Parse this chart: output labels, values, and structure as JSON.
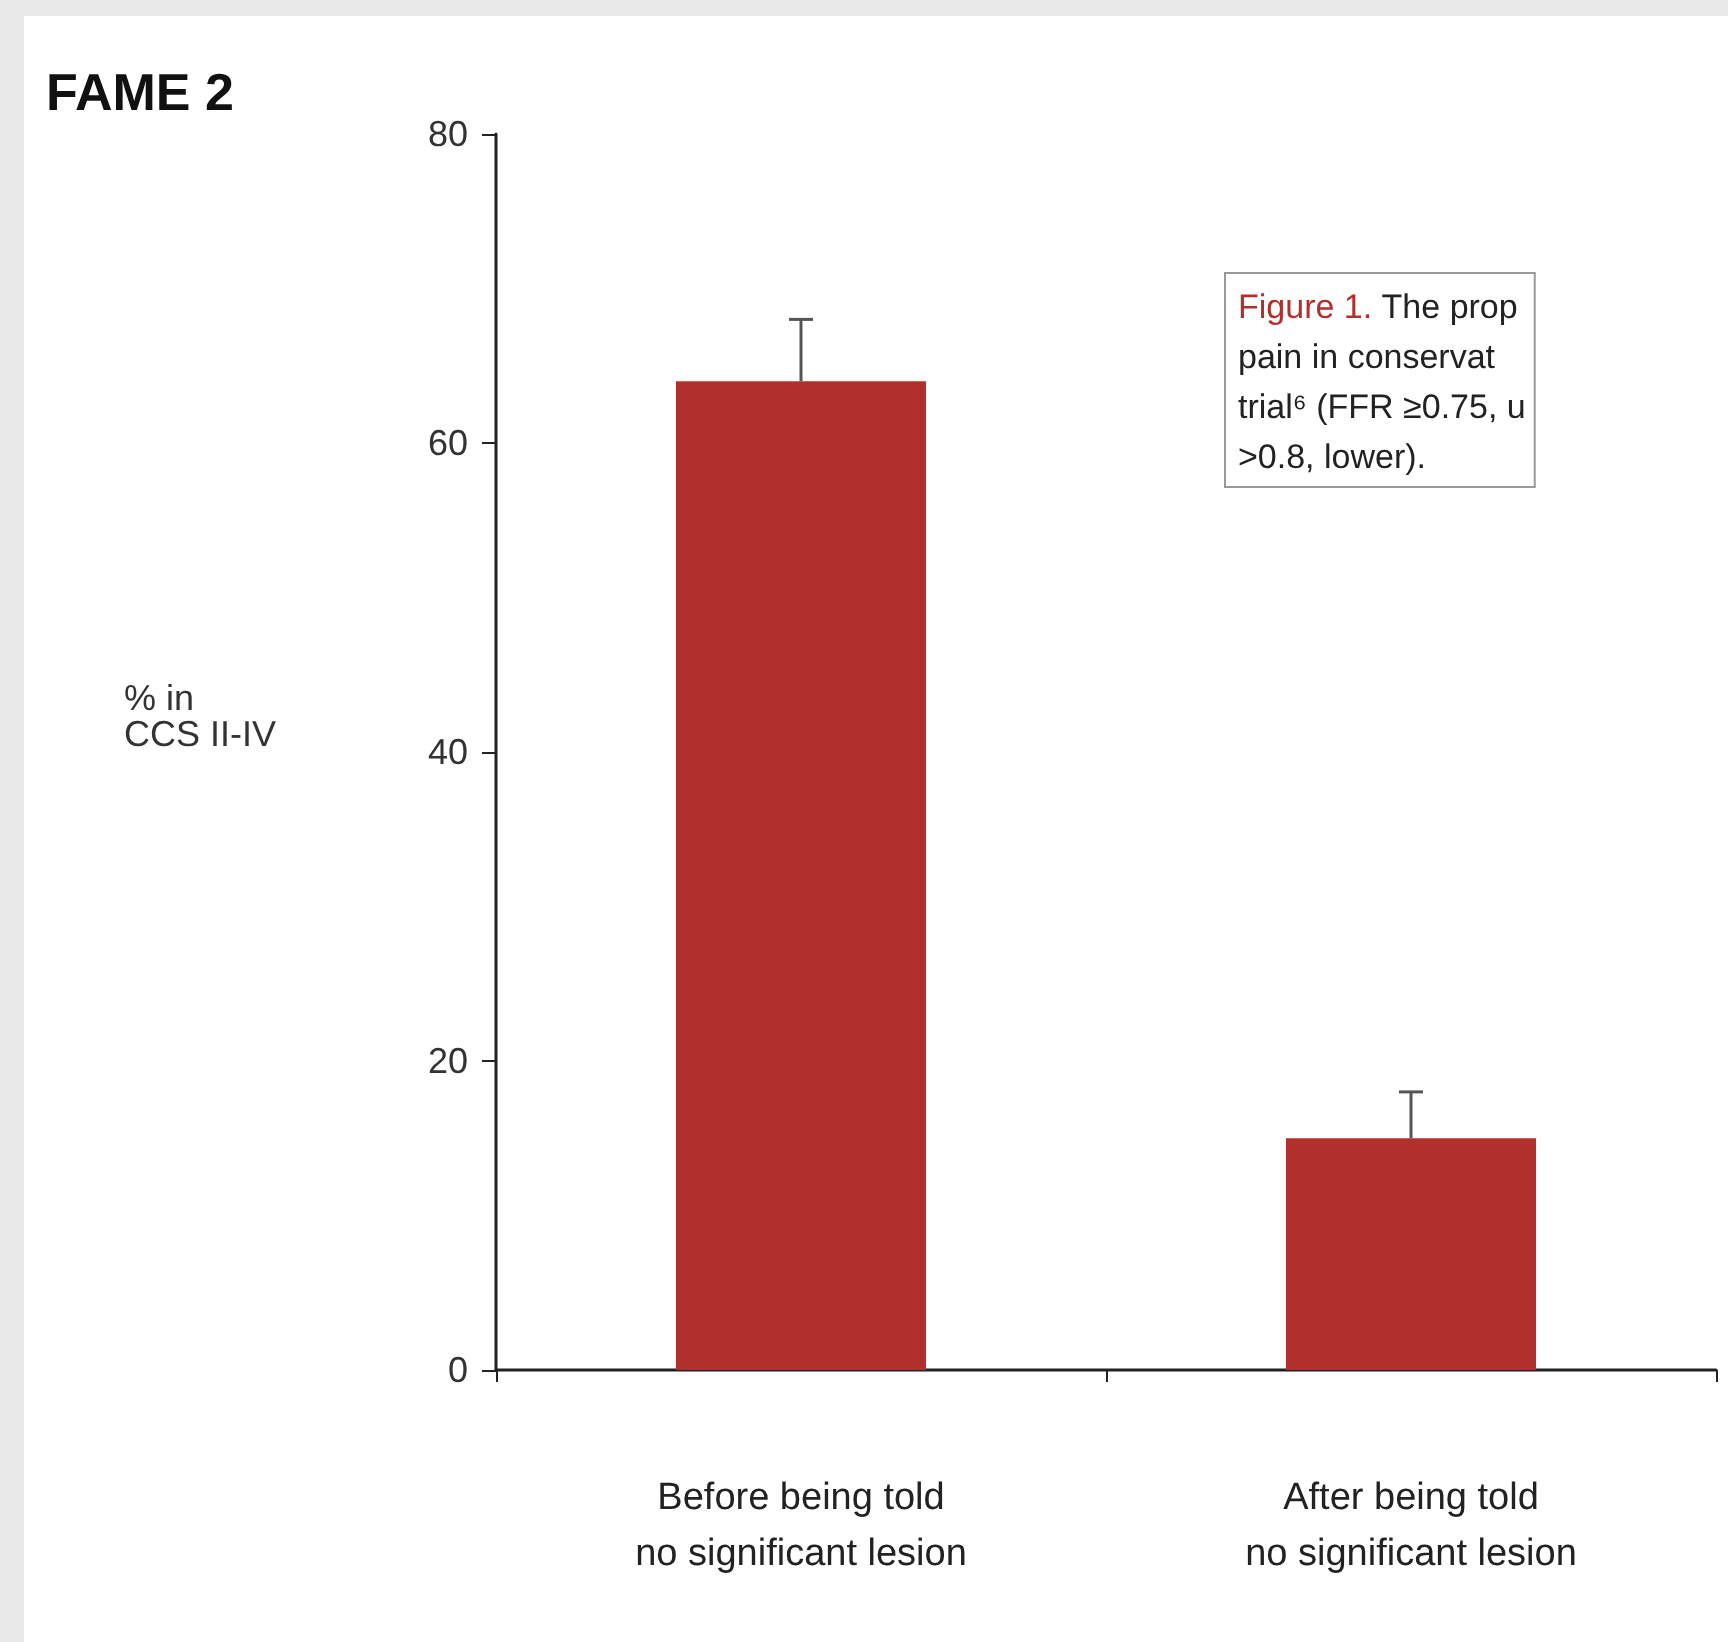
{
  "chart_data": {
    "type": "bar",
    "title": "FAME 2",
    "ylabel": "% in\nCCS II-IV",
    "categories": [
      "Before being told\nno significant lesion",
      "After being told\nno significant lesion"
    ],
    "values": [
      64,
      15
    ],
    "errors": [
      [
        64,
        68
      ],
      [
        15,
        18
      ]
    ],
    "color": "#b2302c",
    "ylim": [
      0,
      80
    ],
    "yticks": [
      0,
      20,
      40,
      60,
      80
    ],
    "grid": false,
    "annotations": [
      "Figure 1.",
      "The prop\npain in conservat\ntrial⁶ (FFR ≥0.75, u\n>0.8, lower)."
    ]
  }
}
